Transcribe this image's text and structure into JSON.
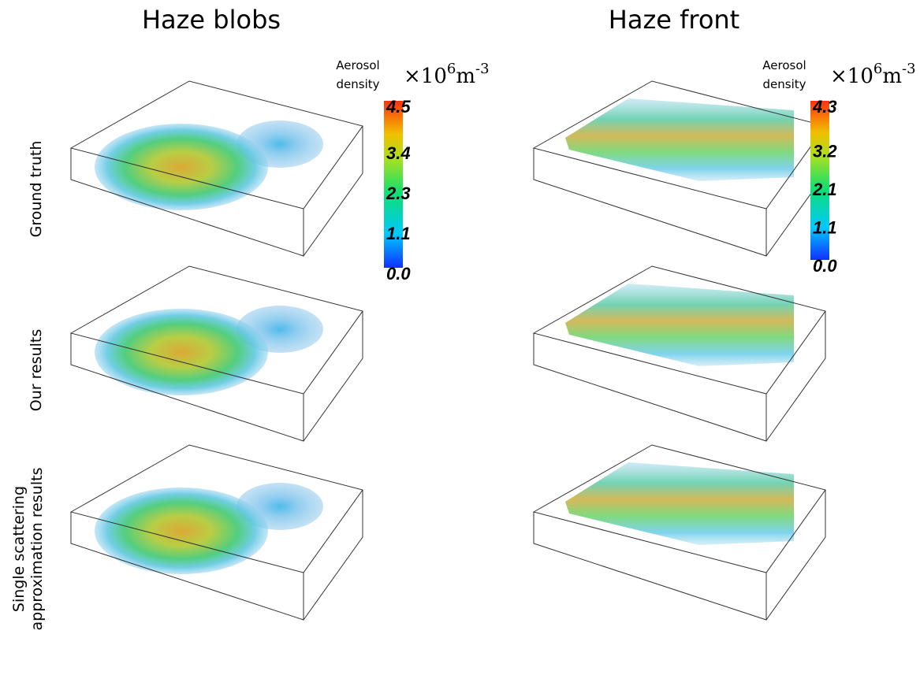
{
  "columns": [
    "Haze blobs",
    "Haze front"
  ],
  "rows": [
    "Ground truth",
    "Our results",
    [
      "Single scattering",
      "approximation results"
    ]
  ],
  "colorbars": [
    {
      "label": [
        "Aerosol",
        "density"
      ],
      "units": {
        "base": "×10",
        "exp": "6",
        "unit": "m",
        "unit_exp": "-3"
      },
      "ticks": [
        "4.5",
        "3.4",
        "2.3",
        "1.1",
        "0.0"
      ]
    },
    {
      "label": [
        "Aerosol",
        "density"
      ],
      "units": {
        "base": "×10",
        "exp": "6",
        "unit": "m",
        "unit_exp": "-3"
      },
      "ticks": [
        "4.3",
        "3.2",
        "2.1",
        "1.1",
        "0.0"
      ]
    }
  ]
}
